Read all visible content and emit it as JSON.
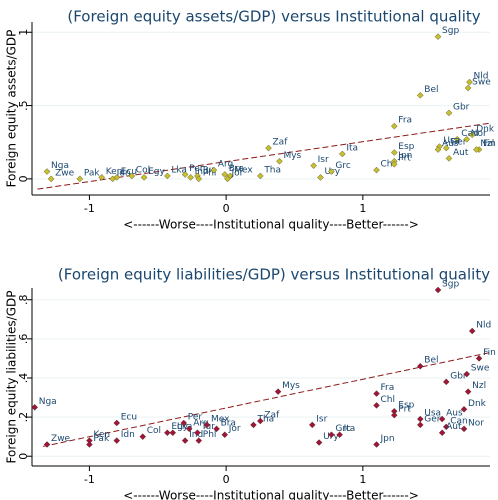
{
  "chart_data": [
    {
      "type": "scatter",
      "title": "(Foreign equity assets/GDP) versus Institutional quality",
      "y_label": "Foreign equity assets/GDP",
      "x_label": "<------Worse----Institutional quality----Better------>",
      "xlim": [
        -1.42,
        1.93
      ],
      "xticks": [
        -1,
        0,
        1
      ],
      "ylim": [
        -0.11,
        1.07
      ],
      "yticks": [
        0,
        {
          "value": 0.5,
          "label": ".5"
        },
        1
      ],
      "grid": true,
      "color": "#c8bf2e",
      "label_color": "#1a476f",
      "point_labels": [
        "Nga",
        "Zwe",
        "Pak",
        "Ken",
        "Ecu",
        "Idn",
        "Col",
        "Egy",
        "Lka",
        "Per",
        "Ind",
        "Tur",
        "Phl",
        "Arg",
        "Bra",
        "Mex",
        "Jor",
        "Tha",
        "Zaf",
        "Mys",
        "Isr",
        "Ury",
        "Grc",
        "Ita",
        "Chl",
        "Jpn",
        "Prt",
        "Fra",
        "Esp",
        "Bel",
        "Sgp",
        "Gbr",
        "Can",
        "Usa",
        "Aus",
        "Ger",
        "Aut",
        "Nld",
        "Swe",
        "Dnk",
        "Nor",
        "Fin",
        "Nzl"
      ],
      "x": [
        -1.31,
        -1.28,
        -1.07,
        -0.91,
        -0.8,
        -0.83,
        -0.69,
        -0.6,
        -0.43,
        -0.3,
        -0.26,
        -0.21,
        -0.2,
        -0.09,
        -0.01,
        0.03,
        0.01,
        0.25,
        0.31,
        0.39,
        0.64,
        0.69,
        0.77,
        0.85,
        1.1,
        1.23,
        1.23,
        1.23,
        1.23,
        1.42,
        1.55,
        1.63,
        1.69,
        1.56,
        1.55,
        1.61,
        1.63,
        1.78,
        1.77,
        1.8,
        1.76,
        1.85,
        1.83
      ],
      "values": [
        0.05,
        0.0,
        0.0,
        0.01,
        0.01,
        0.0,
        0.02,
        0.01,
        0.02,
        0.03,
        0.01,
        0.02,
        0.0,
        0.06,
        0.03,
        0.02,
        0.0,
        0.02,
        0.21,
        0.12,
        0.09,
        0.01,
        0.05,
        0.17,
        0.06,
        0.12,
        0.1,
        0.36,
        0.18,
        0.57,
        0.97,
        0.45,
        0.27,
        0.22,
        0.2,
        0.21,
        0.14,
        0.66,
        0.62,
        0.3,
        0.27,
        0.2,
        0.2
      ],
      "trendline": {
        "color": "#8b1a1a",
        "x": [
          -1.38,
          1.93
        ],
        "values": [
          -0.07,
          0.38
        ]
      }
    },
    {
      "type": "scatter",
      "title": "(Foreign equity liabilities/GDP) versus Institutional quality",
      "y_label": "Foreign equity liabilities/GDP",
      "x_label": "<------Worse----Institutional quality----Better------>",
      "xlim": [
        -1.42,
        1.93
      ],
      "xticks": [
        -1,
        0,
        1
      ],
      "ylim": [
        -0.05,
        0.86
      ],
      "yticks": [
        0,
        {
          "value": 0.2,
          "label": ".2"
        },
        {
          "value": 0.4,
          "label": ".4"
        },
        {
          "value": 0.6,
          "label": ".6"
        },
        {
          "value": 0.8,
          "label": ".8"
        }
      ],
      "grid": true,
      "color": "#a0143c",
      "label_color": "#1a476f",
      "point_labels": [
        "Nga",
        "Zwe",
        "Ken",
        "Pak",
        "Idn",
        "Ecu",
        "Col",
        "Egy",
        "Lka",
        "Per",
        "Ind",
        "Tur",
        "Phl",
        "Arg",
        "Mex",
        "Bra",
        "Jor",
        "Tha",
        "Zaf",
        "Mys",
        "Isr",
        "Ury",
        "Grc",
        "Ita",
        "Chl",
        "Fra",
        "Esp",
        "Prt",
        "Jpn",
        "Usa",
        "Ger",
        "Aus",
        "Can",
        "Aut",
        "Bel",
        "Gbr",
        "Sgp",
        "Nld",
        "Swe",
        "Dnk",
        "Nor",
        "Nzl",
        "Fin"
      ],
      "x": [
        -1.4,
        -1.31,
        -1.0,
        -1.0,
        -0.8,
        -0.8,
        -0.61,
        -0.43,
        -0.39,
        -0.31,
        -0.3,
        -0.21,
        -0.2,
        -0.27,
        -0.14,
        -0.07,
        -0.01,
        0.2,
        0.25,
        0.38,
        0.63,
        0.68,
        0.77,
        0.83,
        1.1,
        1.1,
        1.23,
        1.23,
        1.1,
        1.42,
        1.42,
        1.58,
        1.61,
        1.58,
        1.42,
        1.61,
        1.55,
        1.8,
        1.76,
        1.74,
        1.74,
        1.77,
        1.85
      ],
      "values": [
        0.25,
        0.06,
        0.08,
        0.06,
        0.08,
        0.17,
        0.1,
        0.12,
        0.12,
        0.17,
        0.08,
        0.12,
        0.08,
        0.14,
        0.16,
        0.14,
        0.11,
        0.16,
        0.18,
        0.33,
        0.16,
        0.07,
        0.11,
        0.11,
        0.26,
        0.32,
        0.23,
        0.21,
        0.06,
        0.19,
        0.16,
        0.19,
        0.15,
        0.12,
        0.46,
        0.38,
        0.85,
        0.64,
        0.42,
        0.24,
        0.14,
        0.33,
        0.5
      ],
      "trendline": {
        "color": "#8b1a1a",
        "x": [
          -1.34,
          1.93
        ],
        "values": [
          0.05,
          0.53
        ]
      }
    }
  ]
}
